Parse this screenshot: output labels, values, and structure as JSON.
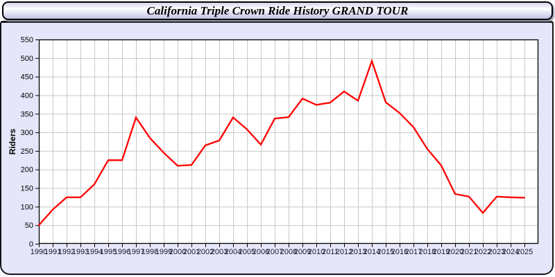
{
  "title": "California Triple Crown Ride History GRAND TOUR",
  "chart_data": {
    "type": "line",
    "title": "California Triple Crown Ride History GRAND TOUR",
    "xlabel": "",
    "ylabel": "Riders",
    "ylim": [
      0,
      550
    ],
    "ytick_step": 50,
    "grid": true,
    "legend": "none",
    "x": [
      1990,
      1991,
      1992,
      1993,
      1994,
      1995,
      1996,
      1997,
      1998,
      1999,
      2000,
      2001,
      2002,
      2003,
      2004,
      2005,
      2006,
      2007,
      2008,
      2009,
      2010,
      2011,
      2012,
      2013,
      2014,
      2015,
      2016,
      2017,
      2018,
      2019,
      2020,
      2021,
      2022,
      2023,
      2024,
      2025
    ],
    "series": [
      {
        "name": "Riders",
        "color": "#ff0000",
        "values": [
          50,
          92,
          125,
          125,
          160,
          225,
          225,
          340,
          285,
          245,
          210,
          212,
          265,
          278,
          340,
          308,
          267,
          337,
          341,
          391,
          374,
          380,
          410,
          385,
          492,
          381,
          352,
          314,
          255,
          211,
          134,
          127,
          83,
          127,
          125,
          124
        ]
      }
    ],
    "colors": {
      "plot_bg": "#ffffff",
      "panel_bg": "#e6e6fa",
      "grid": "#c8c8c8",
      "frame": "#000000",
      "tick_label": "#14142e"
    }
  }
}
